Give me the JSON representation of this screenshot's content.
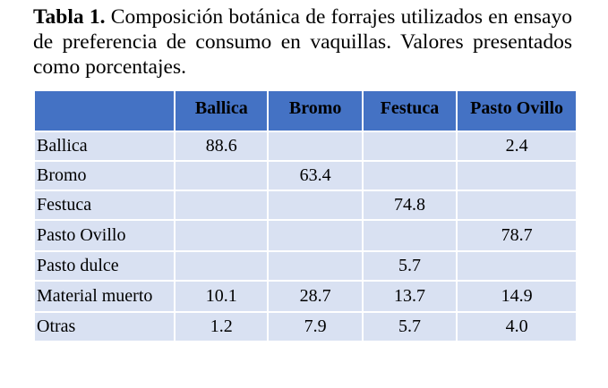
{
  "caption": {
    "label": "Tabla 1.",
    "text": "Composición botánica de forrajes utilizados en ensayo de preferencia de consumo en vaquillas. Valores presentados como porcentajes."
  },
  "table": {
    "columns": [
      "",
      "Ballica",
      "Bromo",
      "Festuca",
      "Pasto Ovillo"
    ],
    "rows": [
      {
        "label": "Ballica",
        "values": [
          "88.6",
          "",
          "",
          "2.4"
        ]
      },
      {
        "label": "Bromo",
        "values": [
          "",
          "63.4",
          "",
          ""
        ]
      },
      {
        "label": "Festuca",
        "values": [
          "",
          "",
          "74.8",
          ""
        ]
      },
      {
        "label": "Pasto Ovillo",
        "values": [
          "",
          "",
          "",
          "78.7"
        ]
      },
      {
        "label": "Pasto dulce",
        "values": [
          "",
          "",
          "5.7",
          ""
        ]
      },
      {
        "label": "Material muerto",
        "values": [
          "10.1",
          "28.7",
          "13.7",
          "14.9"
        ]
      },
      {
        "label": "Otras",
        "values": [
          "1.2",
          "7.9",
          "5.7",
          "4.0"
        ]
      }
    ]
  },
  "colors": {
    "header_bg": "#4472c4",
    "cell_bg": "#d9e1f2"
  }
}
